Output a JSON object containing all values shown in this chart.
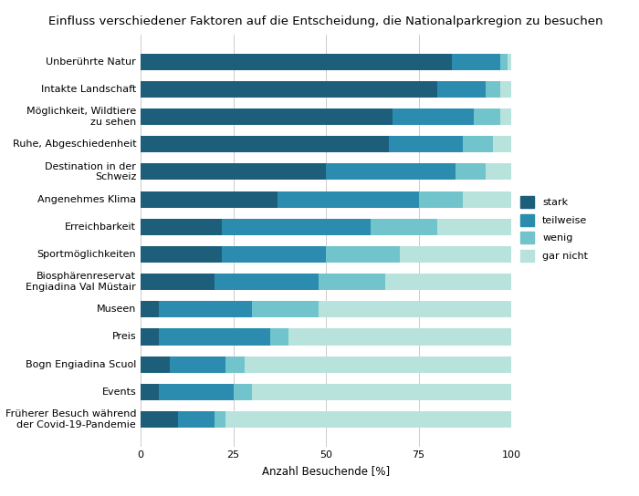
{
  "title": "Einfluss verschiedener Faktoren auf die Entscheidung, die Nationalparkregion zu besuchen",
  "xlabel": "Anzahl Besuchende [%]",
  "categories": [
    "Unberührte Natur",
    "Intakte Landschaft",
    "Möglichkeit, Wildtiere\nzu sehen",
    "Ruhe, Abgeschiedenheit",
    "Destination in der\nSchweiz",
    "Angenehmes Klima",
    "Erreichbarkeit",
    "Sportmöglichkeiten",
    "Biosphärenreservat\nEngiadina Val Müstair",
    "Museen",
    "Preis",
    "Bogn Engiadina Scuol",
    "Events",
    "Früherer Besuch während\nder Covid-19-Pandemie"
  ],
  "stark": [
    84,
    80,
    68,
    67,
    50,
    37,
    22,
    22,
    20,
    5,
    5,
    8,
    5,
    10
  ],
  "teilweise": [
    13,
    13,
    22,
    20,
    35,
    38,
    40,
    28,
    28,
    25,
    30,
    15,
    20,
    10
  ],
  "wenig": [
    2,
    4,
    7,
    8,
    8,
    12,
    18,
    20,
    18,
    18,
    5,
    5,
    5,
    3
  ],
  "gar_nicht": [
    1,
    3,
    3,
    5,
    7,
    13,
    20,
    30,
    34,
    52,
    60,
    72,
    70,
    77
  ],
  "colors": {
    "stark": "#1d5f7a",
    "teilweise": "#2b8cb0",
    "wenig": "#72c4cc",
    "gar_nicht": "#b8e3dc"
  },
  "xlim": [
    0,
    100
  ],
  "background_color": "#ffffff",
  "grid_color": "#cccccc",
  "title_fontsize": 9.5,
  "label_fontsize": 8.5,
  "tick_fontsize": 8
}
